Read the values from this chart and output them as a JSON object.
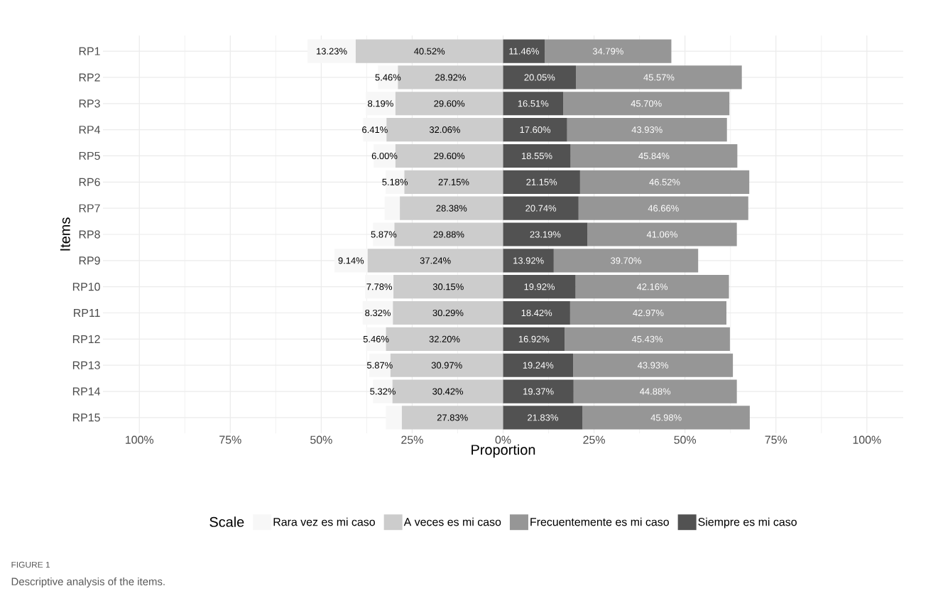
{
  "chart_data": {
    "type": "bar",
    "orientation": "horizontal",
    "xlabel": "Proportion",
    "ylabel": "Items",
    "legend_title": "Scale",
    "legend": "bottom",
    "grid": true,
    "categories": [
      "RP1",
      "RP2",
      "RP3",
      "RP4",
      "RP5",
      "RP6",
      "RP7",
      "RP8",
      "RP9",
      "RP10",
      "RP11",
      "RP12",
      "RP13",
      "RP14",
      "RP15"
    ],
    "xlim": [
      -110,
      110
    ],
    "xticks": [
      {
        "value": -100,
        "label": "100%"
      },
      {
        "value": -75,
        "label": "75%"
      },
      {
        "value": -50,
        "label": "50%"
      },
      {
        "value": -25,
        "label": "25%"
      },
      {
        "value": 0,
        "label": "0%"
      },
      {
        "value": 25,
        "label": "25%"
      },
      {
        "value": 50,
        "label": "50%"
      },
      {
        "value": 75,
        "label": "75%"
      },
      {
        "value": 100,
        "label": "100%"
      }
    ],
    "series": [
      {
        "name": "Rara vez es mi caso",
        "color": "#f7f7f7",
        "values": [
          13.23,
          5.46,
          8.19,
          6.41,
          6.0,
          5.18,
          4.2,
          5.87,
          9.14,
          7.78,
          8.32,
          5.46,
          5.87,
          5.32,
          4.4
        ],
        "base": [
          -53.75,
          -34.38,
          -37.79,
          -38.47,
          -35.6,
          -32.33,
          -32.58,
          -35.75,
          -46.38,
          -37.93,
          -38.61,
          -37.66,
          -36.84,
          -35.74,
          -32.23
        ],
        "value_labels": [
          "13.23%",
          "5.46%",
          "8.19%",
          "6.41%",
          "6.00%",
          "5.18%",
          null,
          "5.87%",
          "9.14%",
          "7.78%",
          "8.32%",
          "5.46%",
          "5.87%",
          "5.32%",
          null
        ]
      },
      {
        "name": "A veces es mi caso",
        "color": "#cccccc",
        "values": [
          40.52,
          28.92,
          29.6,
          32.06,
          29.6,
          27.15,
          28.38,
          29.88,
          37.24,
          30.15,
          30.29,
          32.2,
          30.97,
          30.42,
          27.83
        ],
        "base": [
          -40.52,
          -28.92,
          -29.6,
          -32.06,
          -29.6,
          -27.15,
          -28.38,
          -29.88,
          -37.24,
          -30.15,
          -30.29,
          -32.2,
          -30.97,
          -30.42,
          -27.83
        ],
        "value_labels": [
          "40.52%",
          "28.92%",
          "29.60%",
          "32.06%",
          "29.60%",
          "27.15%",
          "28.38%",
          "29.88%",
          "37.24%",
          "30.15%",
          "30.29%",
          "32.20%",
          "30.97%",
          "30.42%",
          "27.83%"
        ]
      },
      {
        "name": "Frecuentemente es mi caso",
        "color": "#969696",
        "values": [
          34.79,
          45.57,
          45.7,
          43.93,
          45.84,
          46.52,
          46.66,
          41.06,
          39.7,
          42.16,
          42.97,
          45.43,
          43.93,
          44.88,
          45.98
        ],
        "base": [
          11.46,
          20.05,
          16.51,
          17.6,
          18.55,
          21.15,
          20.74,
          23.19,
          13.92,
          19.92,
          18.42,
          16.92,
          19.24,
          19.37,
          21.83
        ],
        "value_labels": [
          "34.79%",
          "45.57%",
          "45.70%",
          "43.93%",
          "45.84%",
          "46.52%",
          "46.66%",
          "41.06%",
          "39.70%",
          "42.16%",
          "42.97%",
          "45.43%",
          "43.93%",
          "44.88%",
          "45.98%"
        ]
      },
      {
        "name": "Siempre es mi caso",
        "color": "#525252",
        "values": [
          11.46,
          20.05,
          16.51,
          17.6,
          18.55,
          21.15,
          20.74,
          23.19,
          13.92,
          19.92,
          18.42,
          16.92,
          19.24,
          19.37,
          21.83
        ],
        "base": [
          0,
          0,
          0,
          0,
          0,
          0,
          0,
          0,
          0,
          0,
          0,
          0,
          0,
          0,
          0
        ],
        "value_labels": [
          "11.46%",
          "20.05%",
          "16.51%",
          "17.60%",
          "18.55%",
          "21.15%",
          "20.74%",
          "23.19%",
          "13.92%",
          "19.92%",
          "18.42%",
          "16.92%",
          "19.24%",
          "19.37%",
          "21.83%"
        ]
      }
    ],
    "annotations": [
      "FIGURE 1",
      "Descriptive analysis of the items."
    ]
  }
}
